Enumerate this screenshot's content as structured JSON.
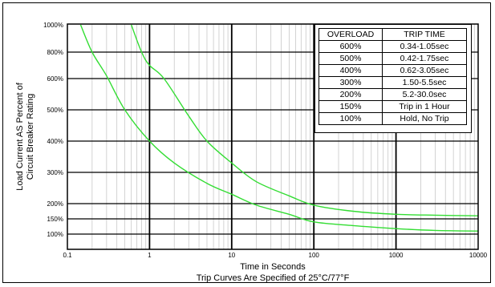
{
  "chart_data": {
    "type": "line",
    "title": "",
    "xlabel": "Time in Seconds",
    "ylabel": "Load Current AS Percent of Circuit Breaker Rating",
    "ylabel_lines": [
      "Load Current AS Percent of",
      "Circuit Breaker Rating"
    ],
    "caption": "Trip Curves Are Specified of 25°C/77°F",
    "x_scale": "log",
    "xlim": [
      0.1,
      10000
    ],
    "x_ticks": [
      "0.1",
      "1",
      "10",
      "100",
      "1000",
      "10000"
    ],
    "y_ticks": [
      "100%",
      "150%",
      "200%",
      "300%",
      "400%",
      "500%",
      "600%",
      "800%",
      "1000%"
    ],
    "ylim": [
      100,
      1000
    ],
    "grid": true,
    "curve_color": "#33dd33",
    "series": [
      {
        "points": [
          [
            0.145,
            1000
          ],
          [
            0.2,
            800
          ],
          [
            0.3,
            620
          ],
          [
            0.5,
            500
          ],
          [
            1,
            400
          ],
          [
            2,
            330
          ],
          [
            5,
            265
          ],
          [
            10,
            230
          ],
          [
            20,
            195
          ],
          [
            50,
            165
          ],
          [
            100,
            140
          ],
          [
            300,
            128
          ],
          [
            1000,
            118
          ],
          [
            3000,
            112
          ],
          [
            10000,
            110
          ]
        ]
      },
      {
        "points": [
          [
            0.6,
            1000
          ],
          [
            0.8,
            800
          ],
          [
            1,
            700
          ],
          [
            1.5,
            600
          ],
          [
            3,
            480
          ],
          [
            5,
            400
          ],
          [
            10,
            330
          ],
          [
            20,
            270
          ],
          [
            50,
            225
          ],
          [
            100,
            195
          ],
          [
            300,
            175
          ],
          [
            1000,
            165
          ],
          [
            3000,
            162
          ],
          [
            10000,
            160
          ]
        ]
      }
    ]
  },
  "trip_table": {
    "headers": [
      "OVERLOAD",
      "TRIP TIME"
    ],
    "rows": [
      [
        "600%",
        "0.34-1.05sec"
      ],
      [
        "500%",
        "0.42-1.75sec"
      ],
      [
        "400%",
        "0.62-3.05sec"
      ],
      [
        "300%",
        "1.50-5.5sec"
      ],
      [
        "200%",
        "5.2-30.0sec"
      ],
      [
        "150%",
        "Trip in 1 Hour"
      ],
      [
        "100%",
        "Hold, No Trip"
      ]
    ]
  }
}
